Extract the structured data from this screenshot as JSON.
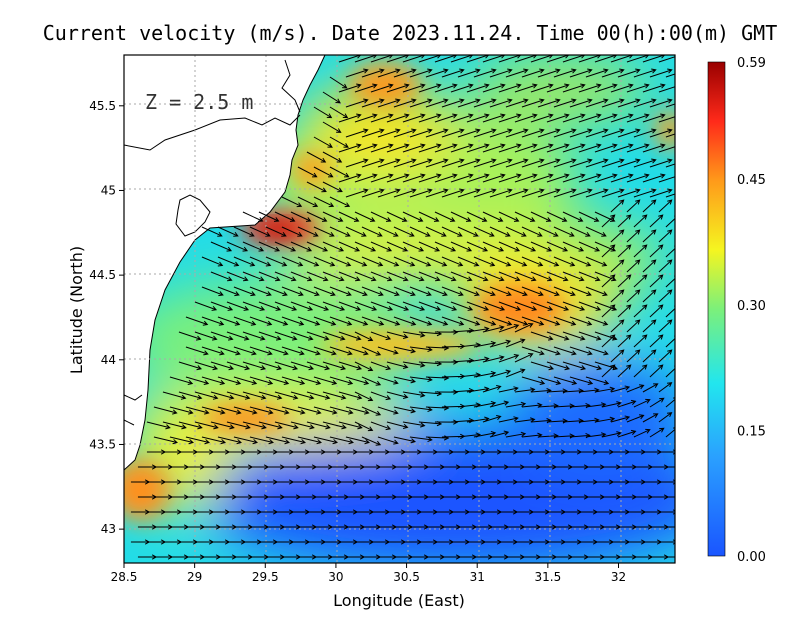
{
  "title": "Current velocity (m/s). Date 2023.11.24. Time 00(h):00(m) GMT",
  "depth_label": "Z = 2.5 m",
  "chart_data": {
    "type": "heatmap",
    "subtype": "vector-field-map",
    "xlabel": "Longitude (East)",
    "ylabel": "Latitude (North)",
    "xlim": [
      28.5,
      32.4
    ],
    "ylim": [
      42.8,
      45.8
    ],
    "x_ticks": [
      "28.5",
      "29",
      "29.5",
      "30",
      "30.5",
      "31",
      "31.5",
      "32"
    ],
    "y_ticks": [
      "43",
      "43.5",
      "44",
      "44.5",
      "45",
      "45.5"
    ],
    "grid": "dotted",
    "colorbar": {
      "min": 0.0,
      "max": 0.59,
      "labels": [
        "0.00",
        "0.15",
        "0.30",
        "0.45",
        "0.59"
      ],
      "colors": [
        "#1a55ff",
        "#2aa0ff",
        "#22e6ee",
        "#7cf07a",
        "#f5f520",
        "#ff9a1a",
        "#ff2a1a",
        "#990000"
      ]
    },
    "hotspots": [
      {
        "lon": 29.6,
        "lat": 44.75,
        "speed": 0.59
      },
      {
        "lon": 31.3,
        "lat": 44.3,
        "speed": 0.45
      },
      {
        "lon": 29.35,
        "lat": 43.65,
        "speed": 0.45
      },
      {
        "lon": 28.6,
        "lat": 43.2,
        "speed": 0.45
      },
      {
        "lon": 30.7,
        "lat": 45.6,
        "speed": 0.4
      },
      {
        "lon": 32.3,
        "lat": 45.3,
        "speed": 0.42
      }
    ],
    "low_speed_region": {
      "lat_range": [
        42.8,
        43.6
      ],
      "lon_range": [
        29.0,
        32.4
      ],
      "speed": 0.05
    },
    "colors": {
      "land": "#ffffff",
      "coastline": "#000000",
      "arrow": "#000000"
    }
  }
}
